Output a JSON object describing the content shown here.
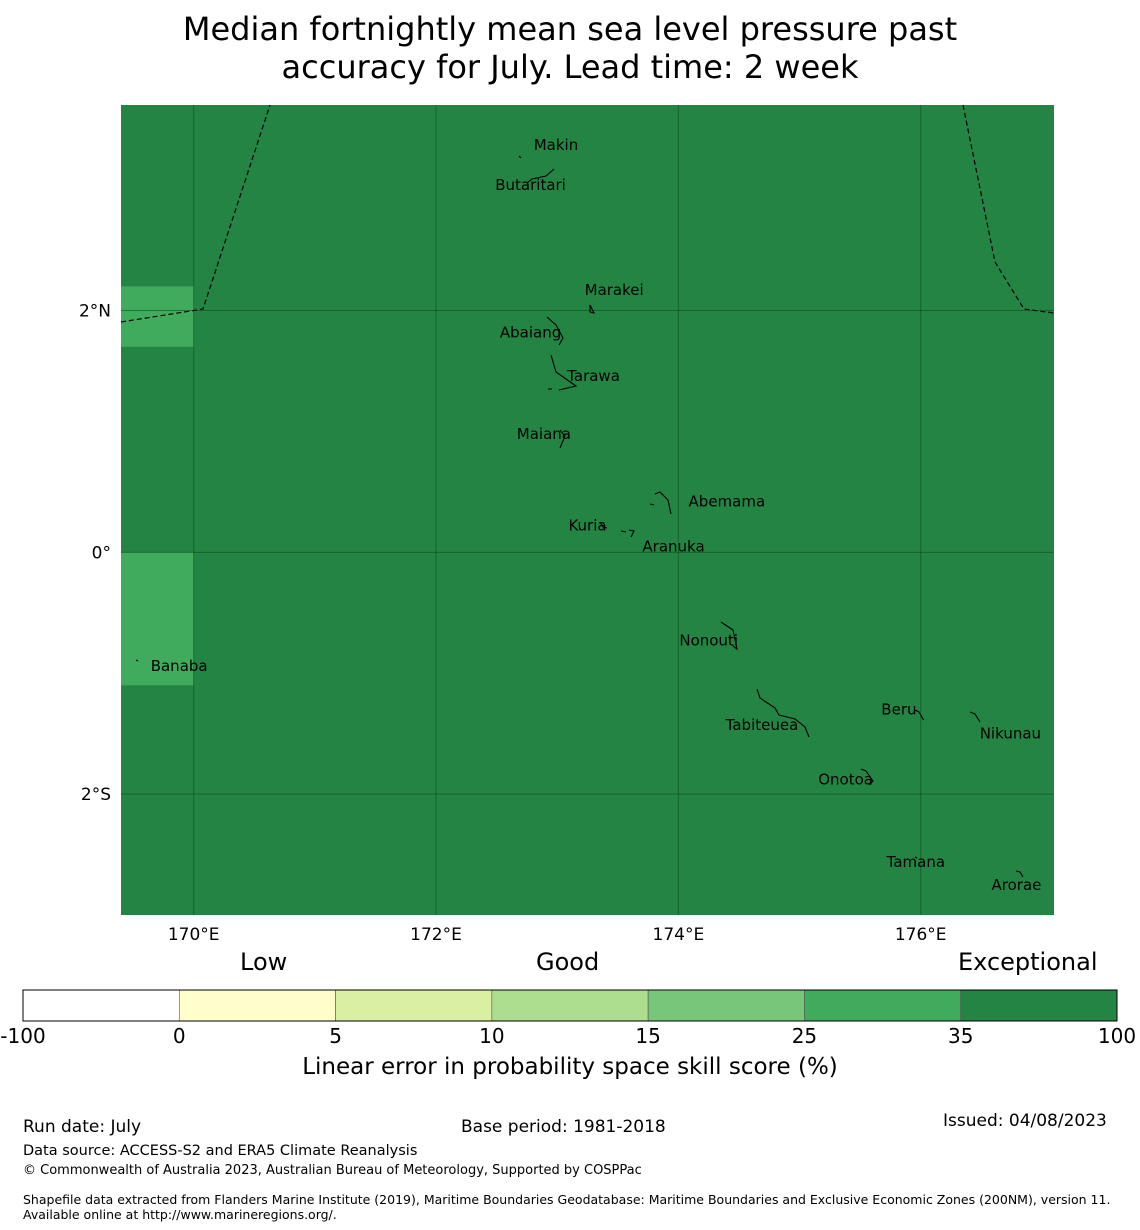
{
  "title": {
    "line1": "Median fortnightly mean sea level pressure past",
    "line2": "accuracy for July. Lead time: 2 week"
  },
  "map": {
    "lon_range": [
      169.4,
      177.1
    ],
    "lat_range": [
      -3.0,
      3.7
    ],
    "lon_ticks": [
      {
        "value": 170,
        "label": "170°E"
      },
      {
        "value": 172,
        "label": "172°E"
      },
      {
        "value": 174,
        "label": "174°E"
      },
      {
        "value": 176,
        "label": "176°E"
      }
    ],
    "lat_ticks": [
      {
        "value": 2,
        "label": "2°N"
      },
      {
        "value": 0,
        "label": "0°"
      },
      {
        "value": -2,
        "label": "2°S"
      }
    ],
    "background_color": "#238443",
    "highlight_color": "#41ab5d",
    "highlight_cells": [
      {
        "lon": [
          169.4,
          170.0
        ],
        "lat": [
          1.7,
          2.2
        ]
      },
      {
        "lon": [
          169.4,
          170.0
        ],
        "lat": [
          -1.1,
          0.0
        ]
      }
    ],
    "places": [
      {
        "name": "Makin",
        "lon": 172.99,
        "lat": 3.37
      },
      {
        "name": "Butaritari",
        "lon": 172.78,
        "lat": 3.04
      },
      {
        "name": "Marakei",
        "lon": 173.47,
        "lat": 2.17
      },
      {
        "name": "Abaiang",
        "lon": 172.78,
        "lat": 1.82
      },
      {
        "name": "Tarawa",
        "lon": 173.3,
        "lat": 1.46
      },
      {
        "name": "Maiana",
        "lon": 172.89,
        "lat": 0.98
      },
      {
        "name": "Abemama",
        "lon": 174.4,
        "lat": 0.42
      },
      {
        "name": "Kuria",
        "lon": 173.25,
        "lat": 0.22
      },
      {
        "name": "Aranuka",
        "lon": 173.96,
        "lat": 0.05
      },
      {
        "name": "Banaba",
        "lon": 169.88,
        "lat": -0.94
      },
      {
        "name": "Nonouti",
        "lon": 174.25,
        "lat": -0.73
      },
      {
        "name": "Tabiteuea",
        "lon": 174.69,
        "lat": -1.43
      },
      {
        "name": "Beru",
        "lon": 175.82,
        "lat": -1.3
      },
      {
        "name": "Nikunau",
        "lon": 176.74,
        "lat": -1.5
      },
      {
        "name": "Onotoa",
        "lon": 175.38,
        "lat": -1.88
      },
      {
        "name": "Tamana",
        "lon": 175.96,
        "lat": -2.56
      },
      {
        "name": "Arorae",
        "lon": 176.79,
        "lat": -2.75
      }
    ]
  },
  "colorbar": {
    "categories": [
      {
        "label": "Low"
      },
      {
        "label": "Good"
      },
      {
        "label": "Exceptional"
      }
    ],
    "bins": [
      {
        "from": -100,
        "to": 0,
        "color": "#ffffff"
      },
      {
        "from": 0,
        "to": 5,
        "color": "#ffffcc"
      },
      {
        "from": 5,
        "to": 10,
        "color": "#d9f0a3"
      },
      {
        "from": 10,
        "to": 15,
        "color": "#addd8e"
      },
      {
        "from": 15,
        "to": 25,
        "color": "#78c679"
      },
      {
        "from": 25,
        "to": 35,
        "color": "#41ab5d"
      },
      {
        "from": 35,
        "to": 100,
        "color": "#238443"
      }
    ],
    "ticks": [
      "-100",
      "0",
      "5",
      "10",
      "15",
      "25",
      "35",
      "100"
    ],
    "label": "Linear error in probability space skill score (%)"
  },
  "footer": {
    "run_date": "Run date: July",
    "base_period": "Base period: 1981-2018",
    "issued": "Issued: 04/08/2023",
    "data_source": "Data source: ACCESS-S2 and ERA5 Climate Reanalysis",
    "copyright": "© Commonwealth of Australia 2023, Australian Bureau of Meteorology, Supported by COSPPac",
    "shapefile": "Shapefile data extracted from Flanders Marine Institute (2019), Maritime Boundaries Geodatabase: Maritime Boundaries and Exclusive Economic Zones (200NM), version 11. Available online at http://www.marineregions.org/."
  }
}
